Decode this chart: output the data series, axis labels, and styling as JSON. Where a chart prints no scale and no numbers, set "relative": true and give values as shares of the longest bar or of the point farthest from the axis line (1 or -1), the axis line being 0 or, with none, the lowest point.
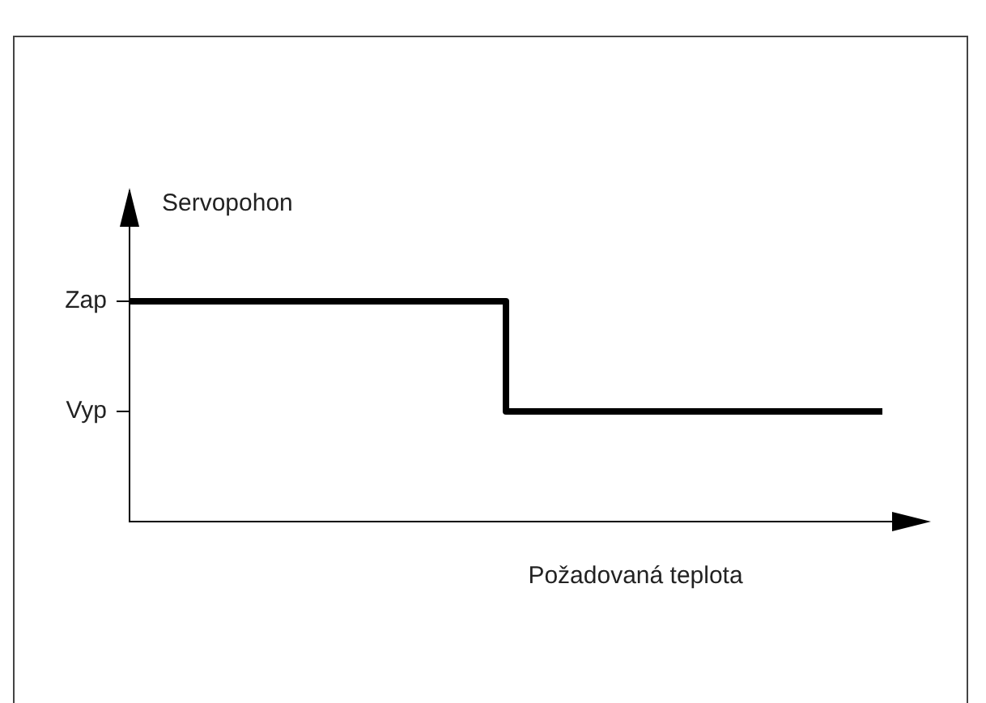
{
  "chart_data": {
    "type": "step",
    "ylabel": "Servopohon",
    "xlabel": "Požadovaná teplota",
    "categories": [
      null,
      null,
      null,
      null,
      null
    ],
    "series": [
      {
        "color": "#000000",
        "values": [
          1,
          1,
          0.5,
          0.5,
          0.5
        ]
      }
    ],
    "relative": true,
    "annotations": [
      "Zap",
      "Vyp"
    ],
    "tick_labels": false,
    "grid": false,
    "legend": false,
    "marker": "none",
    "line_style": "solid"
  }
}
